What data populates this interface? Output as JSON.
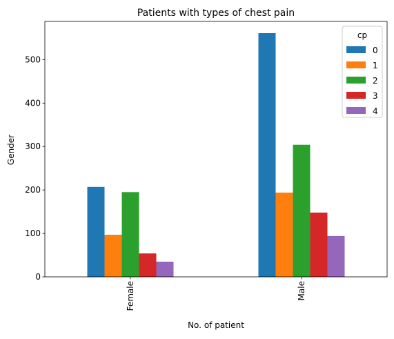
{
  "chart_data": {
    "type": "bar",
    "title": "Patients with types of chest pain",
    "xlabel": "No. of patient",
    "ylabel": "Gender",
    "categories": [
      "Female",
      "Male"
    ],
    "ylim": [
      0,
      588
    ],
    "yticks": [
      0,
      100,
      200,
      300,
      400,
      500
    ],
    "legend": {
      "title": "cp",
      "position": "top-right"
    },
    "series": [
      {
        "name": "0",
        "color": "#1f77b4",
        "values": [
          207,
          561
        ]
      },
      {
        "name": "1",
        "color": "#ff7f0e",
        "values": [
          97,
          194
        ]
      },
      {
        "name": "2",
        "color": "#2ca02c",
        "values": [
          195,
          304
        ]
      },
      {
        "name": "3",
        "color": "#d62728",
        "values": [
          54,
          148
        ]
      },
      {
        "name": "4",
        "color": "#9467bd",
        "values": [
          35,
          94
        ]
      }
    ],
    "grid": false
  }
}
